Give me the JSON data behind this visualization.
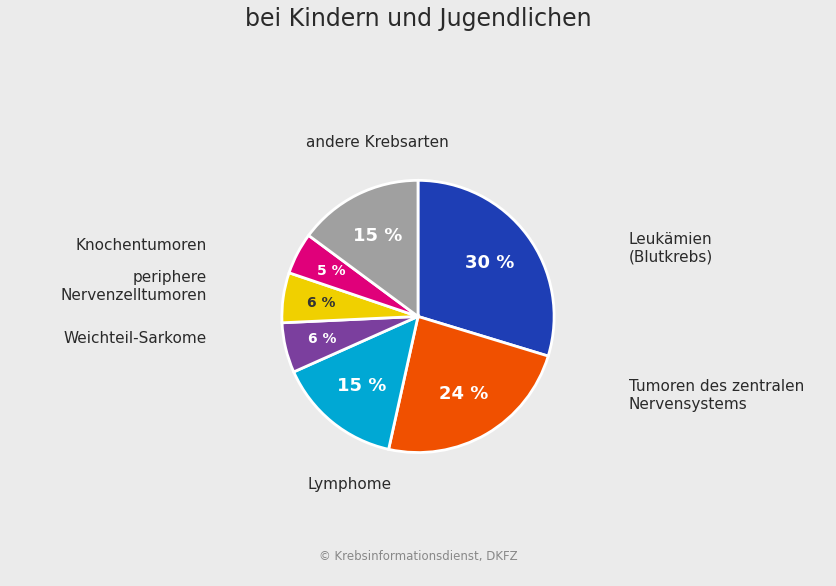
{
  "title": "Die häufigsten Krebsarten\nbei Kindern und Jugendlichen",
  "title_fontsize": 17,
  "background_color": "#ebebeb",
  "slices": [
    {
      "label": "Leukämien\n(Blutkrebs)",
      "pct": 30,
      "color": "#1e3eb5",
      "pct_label": "30 %"
    },
    {
      "label": "Tumoren des zentralen\nNervensystems",
      "pct": 24,
      "color": "#f05000",
      "pct_label": "24 %"
    },
    {
      "label": "Lymphome",
      "pct": 15,
      "color": "#00a8d4",
      "pct_label": "15 %"
    },
    {
      "label": "Weichteil-Sarkome",
      "pct": 6,
      "color": "#7b3f9e",
      "pct_label": "6 %"
    },
    {
      "label": "periphere\nNervenzelltumoren",
      "pct": 6,
      "color": "#f0d000",
      "pct_label": "6 %"
    },
    {
      "label": "Knochentumoren",
      "pct": 5,
      "color": "#e0007a",
      "pct_label": "5 %"
    },
    {
      "label": "andere Krebsarten",
      "pct": 15,
      "color": "#a0a0a0",
      "pct_label": "15 %"
    }
  ],
  "startangle": 90,
  "copyright_text": "© Krebsinformationsdienst, DKFZ",
  "label_fontsize": 11,
  "pct_fontsize_large": 13,
  "pct_fontsize_small": 10
}
